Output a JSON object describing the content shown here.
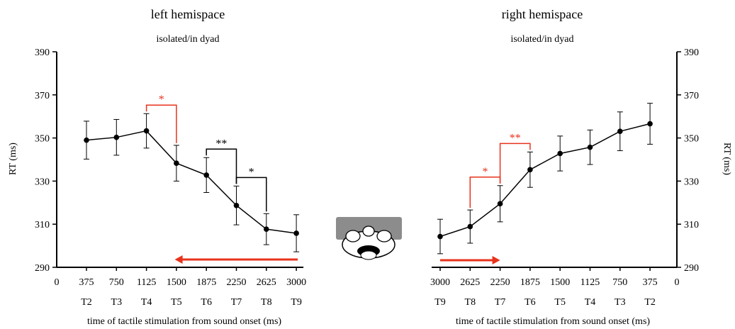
{
  "colors": {
    "data": "#000000",
    "accent": "#e8321c",
    "head_fill": "#8c8c8c"
  },
  "chart_data": [
    {
      "type": "line",
      "title": "left hemispace",
      "subtitle": "isolated/in dyad",
      "ylabel": "RT (ms)",
      "xlabel": "time of tactile stimulation from sound onset (ms)",
      "ylim": [
        290,
        390
      ],
      "yticks": [
        "290",
        "310",
        "330",
        "350",
        "370",
        "390"
      ],
      "x_origin_label": "0",
      "categories": [
        "375",
        "750",
        "1125",
        "1500",
        "1875",
        "2250",
        "2625",
        "3000"
      ],
      "sublabels": [
        "T2",
        "T3",
        "T4",
        "T5",
        "T6",
        "T7",
        "T8",
        "T9"
      ],
      "series": [
        {
          "values": [
            349,
            350.3,
            353.3,
            338.3,
            332.8,
            318.7,
            307.7,
            305.8
          ],
          "errors": [
            8.8,
            8.3,
            8.0,
            8.3,
            8.1,
            9.0,
            7.2,
            8.6
          ]
        }
      ],
      "significance": [
        {
          "from": "1125",
          "to": "1500",
          "label": "*",
          "color": "accent"
        },
        {
          "from": "1875",
          "to": "2250",
          "label": "**",
          "color": "data"
        },
        {
          "from": "2250",
          "to": "2625",
          "label": "*",
          "color": "data"
        }
      ],
      "arrow_direction": "right-to-left",
      "axis_side": "left"
    },
    {
      "type": "line",
      "title": "right hemispace",
      "subtitle": "isolated/in dyad",
      "ylabel": "RT (ms)",
      "xlabel": "time of tactile stimulation from sound onset (ms)",
      "ylim": [
        290,
        390
      ],
      "yticks": [
        "290",
        "310",
        "330",
        "350",
        "370",
        "390"
      ],
      "x_origin_label": "0",
      "categories": [
        "3000",
        "2625",
        "2250",
        "1875",
        "1500",
        "1125",
        "750",
        "375"
      ],
      "sublabels": [
        "T9",
        "T8",
        "T7",
        "T6",
        "T5",
        "T4",
        "T3",
        "T2"
      ],
      "series": [
        {
          "values": [
            304.3,
            308.9,
            319.5,
            335.3,
            342.8,
            345.7,
            353.1,
            356.6
          ],
          "errors": [
            8.0,
            7.7,
            8.4,
            8.2,
            8.1,
            8.0,
            9.0,
            9.5
          ]
        }
      ],
      "significance": [
        {
          "from": "2625",
          "to": "2250",
          "label": "*",
          "color": "accent"
        },
        {
          "from": "2250",
          "to": "1875",
          "label": "**",
          "color": "accent"
        }
      ],
      "arrow_direction": "left-to-right",
      "axis_side": "right"
    }
  ]
}
